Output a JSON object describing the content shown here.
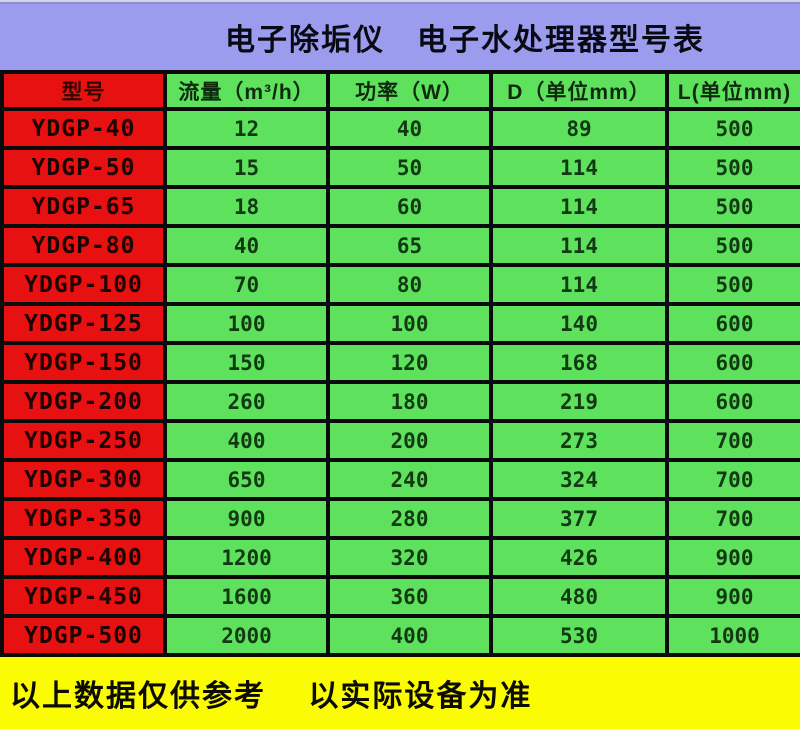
{
  "title": "电子除垢仪　电子水处理器型号表",
  "colors": {
    "title_bar_bg": "#9c9cee",
    "model_column_bg": "#e81111",
    "data_cell_bg": "#5ee25e",
    "footer_bg": "#fbfb02",
    "grid_border": "#0a0a0a"
  },
  "table": {
    "headers": [
      "型号",
      "流量（m³/h）",
      "功率（W）",
      "D（单位mm）",
      "L(单位mm)"
    ],
    "rows": [
      {
        "model": "YDGP-40",
        "values": [
          "12",
          "40",
          "89",
          "500"
        ]
      },
      {
        "model": "YDGP-50",
        "values": [
          "15",
          "50",
          "114",
          "500"
        ]
      },
      {
        "model": "YDGP-65",
        "values": [
          "18",
          "60",
          "114",
          "500"
        ]
      },
      {
        "model": "YDGP-80",
        "values": [
          "40",
          "65",
          "114",
          "500"
        ]
      },
      {
        "model": "YDGP-100",
        "values": [
          "70",
          "80",
          "114",
          "500"
        ]
      },
      {
        "model": "YDGP-125",
        "values": [
          "100",
          "100",
          "140",
          "600"
        ]
      },
      {
        "model": "YDGP-150",
        "values": [
          "150",
          "120",
          "168",
          "600"
        ]
      },
      {
        "model": "YDGP-200",
        "values": [
          "260",
          "180",
          "219",
          "600"
        ]
      },
      {
        "model": "YDGP-250",
        "values": [
          "400",
          "200",
          "273",
          "700"
        ]
      },
      {
        "model": "YDGP-300",
        "values": [
          "650",
          "240",
          "324",
          "700"
        ]
      },
      {
        "model": "YDGP-350",
        "values": [
          "900",
          "280",
          "377",
          "700"
        ]
      },
      {
        "model": "YDGP-400",
        "values": [
          "1200",
          "320",
          "426",
          "900"
        ]
      },
      {
        "model": "YDGP-450",
        "values": [
          "1600",
          "360",
          "480",
          "900"
        ]
      },
      {
        "model": "YDGP-500",
        "values": [
          "2000",
          "400",
          "530",
          "1000"
        ]
      }
    ]
  },
  "footer": {
    "note": "以上数据仅供参考　 以实际设备为准"
  },
  "chart_data": {
    "type": "table",
    "title": "电子除垢仪　电子水处理器型号表",
    "columns": [
      "型号",
      "流量（m³/h）",
      "功率（W）",
      "D（单位mm）",
      "L(单位mm)"
    ],
    "rows": [
      [
        "YDGP-40",
        12,
        40,
        89,
        500
      ],
      [
        "YDGP-50",
        15,
        50,
        114,
        500
      ],
      [
        "YDGP-65",
        18,
        60,
        114,
        500
      ],
      [
        "YDGP-80",
        40,
        65,
        114,
        500
      ],
      [
        "YDGP-100",
        70,
        80,
        114,
        500
      ],
      [
        "YDGP-125",
        100,
        100,
        140,
        600
      ],
      [
        "YDGP-150",
        150,
        120,
        168,
        600
      ],
      [
        "YDGP-200",
        260,
        180,
        219,
        600
      ],
      [
        "YDGP-250",
        400,
        200,
        273,
        700
      ],
      [
        "YDGP-300",
        650,
        240,
        324,
        700
      ],
      [
        "YDGP-350",
        900,
        280,
        377,
        700
      ],
      [
        "YDGP-400",
        1200,
        320,
        426,
        900
      ],
      [
        "YDGP-450",
        1600,
        360,
        480,
        900
      ],
      [
        "YDGP-500",
        2000,
        400,
        530,
        1000
      ]
    ],
    "footnote": "以上数据仅供参考 以实际设备为准"
  }
}
